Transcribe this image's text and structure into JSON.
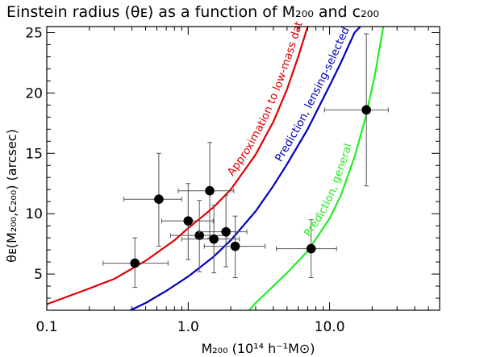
{
  "chart_data": {
    "type": "scatter",
    "title": "Einstein radius (θᴇ) as a function of M₂₀₀ and c₂₀₀",
    "xlabel": "M₂₀₀ (10¹⁴ h⁻¹M⊙)",
    "ylabel": "θᴇ(M₂₀₀,c₂₀₀) (arcsec)",
    "xscale": "log",
    "xlim": [
      0.1,
      60
    ],
    "ylim": [
      2,
      25.5
    ],
    "x_ticks": [
      0.1,
      1.0,
      10.0
    ],
    "x_tick_labels": [
      "0.1",
      "1.0",
      "10.0"
    ],
    "y_ticks": [
      5,
      10,
      15,
      20,
      25
    ],
    "y_tick_labels": [
      "5",
      "10",
      "15",
      "20",
      "25"
    ],
    "grid": false,
    "points": [
      {
        "x": 0.42,
        "y": 5.9,
        "xerr": [
          0.25,
          0.72
        ],
        "yerr": [
          3.9,
          8.0
        ]
      },
      {
        "x": 0.62,
        "y": 11.2,
        "xerr": [
          0.35,
          0.9
        ],
        "yerr": [
          7.3,
          15.0
        ]
      },
      {
        "x": 1.0,
        "y": 9.4,
        "xerr": [
          0.65,
          1.5
        ],
        "yerr": [
          6.2,
          12.5
        ]
      },
      {
        "x": 1.2,
        "y": 8.2,
        "xerr": [
          0.75,
          1.9
        ],
        "yerr": [
          5.2,
          11.1
        ]
      },
      {
        "x": 1.42,
        "y": 11.9,
        "xerr": [
          0.85,
          2.1
        ],
        "yerr": [
          8.0,
          15.9
        ]
      },
      {
        "x": 1.52,
        "y": 7.9,
        "xerr": [
          0.9,
          2.3
        ],
        "yerr": [
          5.1,
          10.7
        ]
      },
      {
        "x": 1.85,
        "y": 8.5,
        "xerr": [
          1.2,
          2.6
        ],
        "yerr": [
          5.6,
          11.5
        ]
      },
      {
        "x": 2.15,
        "y": 7.3,
        "xerr": [
          1.3,
          3.5
        ],
        "yerr": [
          4.7,
          9.8
        ]
      },
      {
        "x": 7.4,
        "y": 7.1,
        "xerr": [
          4.2,
          11.2
        ],
        "yerr": [
          4.7,
          9.5
        ]
      },
      {
        "x": 18.2,
        "y": 18.6,
        "xerr": [
          9.2,
          26.0
        ],
        "yerr": [
          12.3,
          24.9
        ]
      }
    ],
    "series": [
      {
        "name": "Approximation to low-mass data",
        "color": "#e00000",
        "x": [
          0.1,
          0.2,
          0.3,
          0.5,
          0.8,
          1.0,
          1.5,
          2.0,
          3.0,
          4.0,
          5.0,
          6.0,
          7.0
        ],
        "y": [
          2.5,
          3.8,
          4.6,
          6.1,
          7.8,
          8.8,
          10.5,
          12.0,
          14.9,
          17.6,
          20.3,
          23.0,
          25.5
        ]
      },
      {
        "name": "Prediction, lensing-selected",
        "color": "#0000c0",
        "x": [
          0.39,
          0.5,
          0.7,
          1.0,
          1.5,
          2.0,
          3.0,
          4.0,
          5.0,
          7.0,
          10.0,
          12.0,
          15.0,
          16.5
        ],
        "y": [
          2.0,
          2.6,
          3.6,
          4.8,
          6.4,
          7.8,
          10.2,
          12.3,
          14.1,
          17.0,
          20.6,
          22.5,
          25.0,
          25.5
        ]
      },
      {
        "name": "Prediction, general",
        "color": "#22ee22",
        "x": [
          2.7,
          3.0,
          4.0,
          5.0,
          7.0,
          10.0,
          12.0,
          15.0,
          18.0,
          21.0,
          24.0
        ],
        "y": [
          2.0,
          2.6,
          4.0,
          5.1,
          6.9,
          9.6,
          11.5,
          14.7,
          18.0,
          21.6,
          25.5
        ]
      }
    ]
  }
}
